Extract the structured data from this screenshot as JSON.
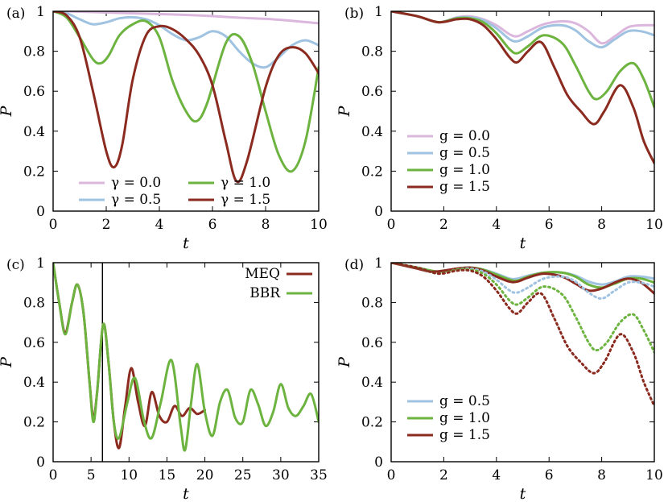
{
  "chart_data": [
    {
      "type": "line",
      "panel_label": "(a)",
      "xlabel": "t",
      "ylabel": "P",
      "xlim": [
        0,
        10
      ],
      "ylim": [
        0,
        1
      ],
      "xticks": [
        0,
        2,
        4,
        6,
        8,
        10
      ],
      "yticks": [
        0,
        0.2,
        0.4,
        0.6,
        0.8,
        1
      ],
      "ytick_labels": [
        "0",
        "0.2",
        "0.4",
        "0.6",
        "0.8",
        "1"
      ],
      "legend_position": "bottom-center",
      "legend_columns": 2,
      "series": [
        {
          "name": "γ = 0.0",
          "color": "#dbb7dd",
          "style": "solid",
          "x": [
            0,
            1,
            2,
            3,
            4,
            5,
            6,
            7,
            8,
            9,
            10
          ],
          "y": [
            1.0,
            0.998,
            0.994,
            0.99,
            0.986,
            0.982,
            0.976,
            0.968,
            0.962,
            0.952,
            0.94
          ]
        },
        {
          "name": "γ = 0.5",
          "color": "#9fc3e0",
          "style": "solid",
          "x": [
            0,
            0.5,
            1,
            1.5,
            2,
            2.5,
            3,
            3.5,
            4,
            4.5,
            5,
            5.5,
            6,
            6.5,
            7,
            7.5,
            8,
            8.5,
            9,
            9.5,
            10
          ],
          "y": [
            1.0,
            0.99,
            0.96,
            0.935,
            0.945,
            0.965,
            0.97,
            0.96,
            0.93,
            0.885,
            0.855,
            0.87,
            0.9,
            0.875,
            0.8,
            0.74,
            0.72,
            0.77,
            0.83,
            0.855,
            0.83
          ]
        },
        {
          "name": "γ = 1.0",
          "color": "#6cb33f",
          "style": "solid",
          "x": [
            0,
            0.5,
            1,
            1.5,
            1.8,
            2.1,
            2.5,
            3,
            3.5,
            4,
            4.5,
            5,
            5.4,
            5.8,
            6.5,
            7,
            7.5,
            8,
            8.5,
            9,
            9.5,
            10
          ],
          "y": [
            1.0,
            0.97,
            0.87,
            0.76,
            0.74,
            0.78,
            0.88,
            0.935,
            0.95,
            0.87,
            0.65,
            0.5,
            0.45,
            0.54,
            0.84,
            0.875,
            0.74,
            0.5,
            0.28,
            0.2,
            0.35,
            0.72
          ]
        },
        {
          "name": "γ = 1.5",
          "color": "#8b2a1e",
          "style": "solid",
          "x": [
            0,
            0.5,
            1,
            1.5,
            2,
            2.3,
            2.6,
            3,
            3.5,
            4,
            4.5,
            5,
            5.5,
            6,
            6.5,
            6.9,
            7.3,
            8,
            8.5,
            9,
            9.5,
            10
          ],
          "y": [
            1.0,
            0.98,
            0.87,
            0.6,
            0.3,
            0.22,
            0.33,
            0.66,
            0.88,
            0.925,
            0.91,
            0.86,
            0.78,
            0.63,
            0.35,
            0.15,
            0.25,
            0.62,
            0.78,
            0.82,
            0.79,
            0.69
          ]
        }
      ]
    },
    {
      "type": "line",
      "panel_label": "(b)",
      "xlabel": "t",
      "ylabel": "P",
      "xlim": [
        0,
        10
      ],
      "ylim": [
        0,
        1
      ],
      "xticks": [
        0,
        2,
        4,
        6,
        8,
        10
      ],
      "yticks": [
        0,
        0.2,
        0.4,
        0.6,
        0.8,
        1
      ],
      "ytick_labels": [
        "0",
        "0.2",
        "0.4",
        "0.6",
        "0.8",
        "1"
      ],
      "legend_position": "bottom-left",
      "legend_columns": 1,
      "series": [
        {
          "name": "g = 0.0",
          "color": "#dbb7dd",
          "style": "solid",
          "x": [
            0,
            1,
            1.8,
            2.5,
            3,
            3.5,
            4,
            4.5,
            4.8,
            5.2,
            5.8,
            6.5,
            7,
            7.5,
            8,
            8.5,
            9,
            9.5,
            10
          ],
          "y": [
            1.0,
            0.975,
            0.945,
            0.97,
            0.975,
            0.96,
            0.93,
            0.885,
            0.875,
            0.9,
            0.935,
            0.95,
            0.94,
            0.9,
            0.84,
            0.875,
            0.92,
            0.93,
            0.93
          ]
        },
        {
          "name": "g = 0.5",
          "color": "#9fc3e0",
          "style": "solid",
          "x": [
            0,
            1,
            1.8,
            2.5,
            3,
            3.5,
            4,
            4.5,
            4.8,
            5.2,
            5.8,
            6.5,
            7,
            7.5,
            8,
            8.5,
            9,
            9.5,
            10
          ],
          "y": [
            1.0,
            0.975,
            0.945,
            0.968,
            0.97,
            0.955,
            0.915,
            0.86,
            0.85,
            0.875,
            0.92,
            0.93,
            0.905,
            0.85,
            0.82,
            0.86,
            0.9,
            0.9,
            0.88
          ]
        },
        {
          "name": "g = 1.0",
          "color": "#6cb33f",
          "style": "solid",
          "x": [
            0,
            1,
            1.8,
            2.5,
            3,
            3.5,
            4,
            4.5,
            4.8,
            5.2,
            5.8,
            6.5,
            7,
            7.5,
            7.8,
            8.2,
            8.7,
            9.2,
            9.6,
            10
          ],
          "y": [
            1.0,
            0.975,
            0.945,
            0.965,
            0.965,
            0.945,
            0.89,
            0.81,
            0.79,
            0.825,
            0.88,
            0.84,
            0.73,
            0.6,
            0.56,
            0.6,
            0.7,
            0.74,
            0.66,
            0.52
          ]
        },
        {
          "name": "g = 1.5",
          "color": "#8b2a1e",
          "style": "solid",
          "x": [
            0,
            1,
            1.8,
            2.5,
            3,
            3.5,
            4,
            4.5,
            4.8,
            5.2,
            5.7,
            6.2,
            6.7,
            7.2,
            7.7,
            8.1,
            8.7,
            9.2,
            9.6,
            10
          ],
          "y": [
            1.0,
            0.975,
            0.945,
            0.96,
            0.96,
            0.93,
            0.86,
            0.77,
            0.745,
            0.8,
            0.845,
            0.72,
            0.58,
            0.5,
            0.435,
            0.5,
            0.63,
            0.52,
            0.35,
            0.24
          ]
        }
      ]
    },
    {
      "type": "line",
      "panel_label": "(c)",
      "xlabel": "t",
      "ylabel": "P",
      "xlim": [
        0,
        35
      ],
      "ylim": [
        0,
        1
      ],
      "xticks": [
        0,
        5,
        10,
        15,
        20,
        25,
        30,
        35
      ],
      "yticks": [
        0,
        0.2,
        0.4,
        0.6,
        0.8,
        1
      ],
      "ytick_labels": [
        "0",
        "0.2",
        "0.4",
        "0.6",
        "0.8",
        "1"
      ],
      "vertical_line_x": 6.5,
      "legend_position": "top-right",
      "legend_columns": 1,
      "series": [
        {
          "name": "MEQ",
          "color": "#8b2a1e",
          "style": "solid",
          "x": [
            0,
            0.8,
            1.6,
            2.5,
            3.2,
            4.0,
            4.8,
            5.3,
            5.8,
            6.6,
            7.3,
            8.0,
            8.7,
            9.5,
            10.3,
            11.2,
            12.1,
            13.0,
            14.0,
            15.0,
            16.0,
            17.0,
            18.0,
            19.0,
            20.0
          ],
          "y": [
            1.0,
            0.8,
            0.65,
            0.8,
            0.89,
            0.75,
            0.4,
            0.22,
            0.35,
            0.69,
            0.5,
            0.2,
            0.07,
            0.28,
            0.47,
            0.3,
            0.18,
            0.35,
            0.23,
            0.2,
            0.28,
            0.23,
            0.27,
            0.24,
            0.26
          ]
        },
        {
          "name": "BBR",
          "color": "#6cb33f",
          "style": "solid",
          "x": [
            0,
            0.8,
            1.6,
            2.5,
            3.2,
            4.0,
            4.8,
            5.3,
            5.8,
            6.6,
            7.3,
            8.0,
            8.7,
            9.8,
            10.8,
            12.0,
            13.0,
            14.2,
            15.6,
            16.8,
            17.4,
            18.2,
            19.0,
            20.0,
            21.0,
            22.0,
            23.0,
            24.0,
            25.0,
            26.0,
            27.0,
            28.0,
            29.0,
            30.0,
            31.0,
            32.0,
            33.0,
            34.0,
            35.0
          ],
          "y": [
            1.0,
            0.8,
            0.64,
            0.8,
            0.89,
            0.75,
            0.4,
            0.2,
            0.35,
            0.69,
            0.5,
            0.2,
            0.12,
            0.3,
            0.42,
            0.2,
            0.12,
            0.3,
            0.51,
            0.18,
            0.06,
            0.3,
            0.49,
            0.25,
            0.13,
            0.3,
            0.36,
            0.22,
            0.2,
            0.36,
            0.29,
            0.18,
            0.25,
            0.39,
            0.27,
            0.23,
            0.28,
            0.34,
            0.2
          ]
        }
      ]
    },
    {
      "type": "line",
      "panel_label": "(d)",
      "xlabel": "t",
      "ylabel": "P",
      "xlim": [
        0,
        10
      ],
      "ylim": [
        0,
        1
      ],
      "xticks": [
        0,
        2,
        4,
        6,
        8,
        10
      ],
      "yticks": [
        0,
        0.2,
        0.4,
        0.6,
        0.8,
        1
      ],
      "ytick_labels": [
        "0",
        "0.2",
        "0.4",
        "0.6",
        "0.8",
        "1"
      ],
      "legend_position": "bottom-left",
      "legend_columns": 1,
      "series": [
        {
          "name": "g = 0.5",
          "color": "#9fc3e0",
          "style": "solid",
          "x": [
            0,
            1,
            1.8,
            2.5,
            3,
            3.5,
            4,
            4.5,
            4.8,
            5.2,
            5.8,
            6.5,
            7,
            7.5,
            8,
            8.5,
            9,
            9.5,
            10
          ],
          "y": [
            1.0,
            0.975,
            0.955,
            0.97,
            0.975,
            0.965,
            0.945,
            0.92,
            0.92,
            0.935,
            0.95,
            0.95,
            0.935,
            0.905,
            0.89,
            0.905,
            0.93,
            0.93,
            0.92
          ]
        },
        {
          "name": "g = 1.0",
          "color": "#6cb33f",
          "style": "solid",
          "x": [
            0,
            1,
            1.8,
            2.5,
            3,
            3.5,
            4,
            4.5,
            4.8,
            5.2,
            5.8,
            6.5,
            7,
            7.5,
            8,
            8.5,
            9,
            9.5,
            10
          ],
          "y": [
            1.0,
            0.975,
            0.955,
            0.97,
            0.975,
            0.965,
            0.94,
            0.915,
            0.91,
            0.93,
            0.95,
            0.95,
            0.93,
            0.89,
            0.875,
            0.895,
            0.92,
            0.92,
            0.9
          ]
        },
        {
          "name": "g = 1.5",
          "color": "#8b2a1e",
          "style": "solid",
          "x": [
            0,
            1,
            1.5,
            2,
            2.5,
            3,
            3.5,
            4,
            4.5,
            4.8,
            5.2,
            5.8,
            6.5,
            7,
            7.5,
            8,
            8.5,
            9,
            9.5,
            10
          ],
          "y": [
            1.0,
            0.97,
            0.955,
            0.96,
            0.97,
            0.975,
            0.96,
            0.93,
            0.905,
            0.905,
            0.925,
            0.945,
            0.93,
            0.895,
            0.86,
            0.87,
            0.9,
            0.92,
            0.9,
            0.845
          ]
        },
        {
          "name": "",
          "color": "#9fc3e0",
          "style": "dotted",
          "x": [
            0,
            1,
            1.8,
            2.5,
            3,
            3.5,
            4,
            4.5,
            4.8,
            5.2,
            5.8,
            6.5,
            7,
            7.5,
            8,
            8.5,
            9,
            9.5,
            10
          ],
          "y": [
            1.0,
            0.975,
            0.945,
            0.965,
            0.97,
            0.955,
            0.915,
            0.86,
            0.85,
            0.875,
            0.92,
            0.93,
            0.905,
            0.85,
            0.82,
            0.86,
            0.9,
            0.9,
            0.88
          ]
        },
        {
          "name": "",
          "color": "#6cb33f",
          "style": "dotted",
          "x": [
            0,
            1,
            1.8,
            2.5,
            3,
            3.5,
            4,
            4.5,
            4.8,
            5.2,
            5.8,
            6.5,
            7,
            7.5,
            7.8,
            8.2,
            8.7,
            9.2,
            9.6,
            10
          ],
          "y": [
            1.0,
            0.975,
            0.945,
            0.965,
            0.965,
            0.945,
            0.89,
            0.81,
            0.79,
            0.825,
            0.88,
            0.84,
            0.73,
            0.6,
            0.56,
            0.6,
            0.7,
            0.74,
            0.66,
            0.55
          ]
        },
        {
          "name": "",
          "color": "#8b2a1e",
          "style": "dotted",
          "x": [
            0,
            1,
            1.8,
            2.5,
            3,
            3.5,
            4,
            4.5,
            4.8,
            5.2,
            5.7,
            6.2,
            6.7,
            7.2,
            7.7,
            8.1,
            8.7,
            9.2,
            9.6,
            10
          ],
          "y": [
            1.0,
            0.975,
            0.945,
            0.96,
            0.96,
            0.93,
            0.86,
            0.77,
            0.745,
            0.8,
            0.845,
            0.72,
            0.58,
            0.5,
            0.445,
            0.5,
            0.64,
            0.55,
            0.4,
            0.28
          ]
        }
      ]
    }
  ]
}
